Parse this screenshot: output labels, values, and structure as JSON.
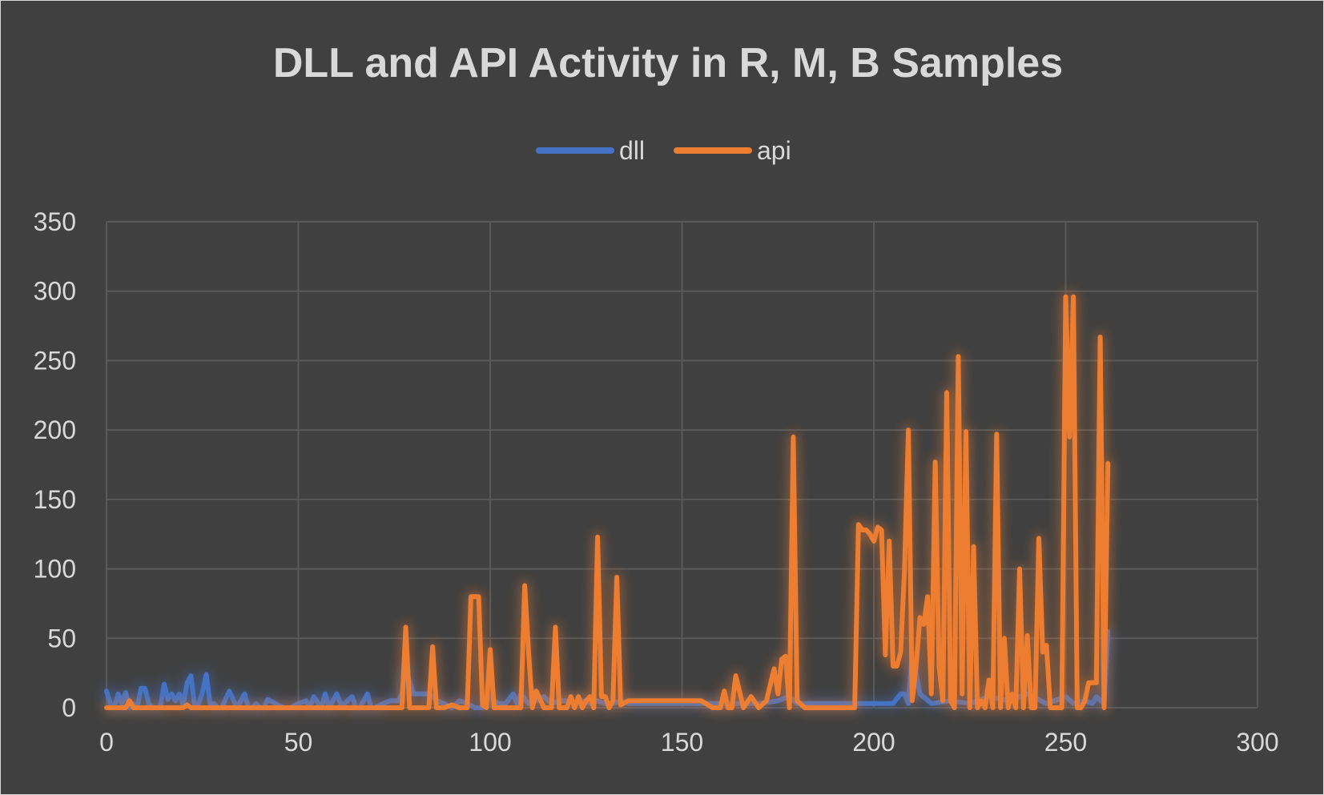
{
  "chart_data": {
    "type": "line",
    "title": "DLL and API Activity in R, M, B Samples",
    "xlabel": "",
    "ylabel": "",
    "xlim": [
      0,
      300
    ],
    "ylim": [
      0,
      350
    ],
    "x_ticks": [
      "0",
      "50",
      "100",
      "150",
      "200",
      "250",
      "300"
    ],
    "y_ticks": [
      "0",
      "50",
      "100",
      "150",
      "200",
      "250",
      "300",
      "350"
    ],
    "grid": true,
    "legend_position": "top-center",
    "background_color": "#404040",
    "text_color": "#d9d9d9",
    "grid_color": "#595959",
    "series": [
      {
        "name": "dll",
        "color": "#4472c4",
        "x": [
          0,
          1,
          2,
          3,
          4,
          5,
          6,
          7,
          8,
          9,
          10,
          11,
          12,
          13,
          14,
          15,
          16,
          17,
          18,
          19,
          20,
          21,
          22,
          23,
          24,
          25,
          26,
          27,
          28,
          29,
          30,
          32,
          34,
          36,
          37,
          38,
          39,
          40,
          41,
          42,
          44,
          46,
          48,
          50,
          52,
          53,
          54,
          56,
          57,
          58,
          60,
          61,
          62,
          64,
          65,
          66,
          68,
          69,
          70,
          72,
          74,
          76,
          77,
          78,
          80,
          82,
          84,
          86,
          88,
          90,
          92,
          94,
          96,
          98,
          100,
          102,
          104,
          106,
          107,
          108,
          110,
          112,
          114,
          116,
          118,
          120,
          122,
          124,
          126,
          128,
          130,
          132,
          134,
          136,
          140,
          150,
          160,
          170,
          175,
          178,
          180,
          185,
          190,
          195,
          200,
          205,
          207,
          208,
          209,
          210,
          212,
          215,
          220,
          225,
          230,
          235,
          240,
          245,
          250,
          252,
          255,
          257,
          258,
          260,
          261
        ],
        "y": [
          12,
          3,
          0,
          10,
          3,
          11,
          0,
          3,
          0,
          14,
          14,
          3,
          0,
          0,
          0,
          17,
          6,
          10,
          5,
          10,
          2,
          18,
          23,
          0,
          3,
          11,
          24,
          3,
          3,
          0,
          0,
          12,
          0,
          10,
          0,
          0,
          3,
          0,
          0,
          6,
          3,
          0,
          0,
          3,
          5,
          0,
          8,
          0,
          10,
          0,
          10,
          3,
          3,
          8,
          0,
          0,
          10,
          0,
          0,
          3,
          5,
          5,
          10,
          28,
          10,
          10,
          10,
          5,
          3,
          0,
          5,
          3,
          0,
          0,
          8,
          3,
          3,
          10,
          3,
          10,
          3,
          5,
          8,
          3,
          5,
          5,
          3,
          5,
          3,
          5,
          3,
          3,
          5,
          3,
          3,
          3,
          3,
          3,
          5,
          8,
          3,
          3,
          3,
          3,
          3,
          3,
          10,
          10,
          3,
          40,
          10,
          3,
          5,
          3,
          8,
          5,
          10,
          3,
          8,
          3,
          5,
          3,
          8,
          3,
          55
        ]
      },
      {
        "name": "api",
        "color": "#ed7d31",
        "x": [
          0,
          5,
          6,
          7,
          8,
          20,
          21,
          22,
          77,
          78,
          79,
          84,
          85,
          86,
          88,
          90,
          92,
          94,
          95,
          97,
          98,
          99,
          100,
          101,
          102,
          104,
          106,
          108,
          109,
          110,
          111,
          112,
          114,
          116,
          117,
          118,
          120,
          121,
          122,
          123,
          124,
          125,
          126,
          127,
          128,
          129,
          130,
          131,
          132,
          133,
          134,
          136,
          150,
          155,
          158,
          160,
          161,
          162,
          163,
          164,
          166,
          168,
          170,
          172,
          174,
          175,
          176,
          177,
          178,
          179,
          180,
          182,
          190,
          195,
          196,
          197,
          198,
          199,
          200,
          201,
          202,
          203,
          204,
          205,
          206,
          207,
          208,
          209,
          210,
          211,
          212,
          213,
          214,
          215,
          216,
          217,
          218,
          219,
          220,
          221,
          222,
          223,
          224,
          225,
          226,
          227,
          228,
          229,
          230,
          231,
          232,
          233,
          234,
          235,
          236,
          237,
          238,
          239,
          240,
          241,
          242,
          243,
          244,
          245,
          246,
          247,
          248,
          249,
          250,
          251,
          252,
          253,
          254,
          255,
          256,
          257,
          258,
          259,
          260,
          261
        ],
        "y": [
          0,
          0,
          5,
          0,
          0,
          0,
          2,
          0,
          0,
          58,
          0,
          0,
          44,
          0,
          0,
          2,
          0,
          0,
          80,
          80,
          2,
          0,
          42,
          0,
          0,
          0,
          0,
          0,
          88,
          40,
          0,
          12,
          0,
          0,
          58,
          0,
          0,
          8,
          0,
          8,
          0,
          5,
          8,
          0,
          123,
          8,
          8,
          0,
          5,
          94,
          2,
          5,
          5,
          5,
          0,
          0,
          12,
          0,
          0,
          23,
          0,
          8,
          0,
          5,
          28,
          10,
          35,
          37,
          0,
          195,
          5,
          0,
          0,
          0,
          132,
          128,
          128,
          125,
          120,
          130,
          128,
          38,
          120,
          30,
          30,
          40,
          100,
          200,
          5,
          30,
          65,
          60,
          80,
          10,
          177,
          30,
          5,
          227,
          5,
          0,
          253,
          10,
          199,
          0,
          116,
          0,
          5,
          0,
          20,
          0,
          197,
          0,
          50,
          0,
          10,
          0,
          100,
          0,
          52,
          0,
          0,
          122,
          40,
          45,
          0,
          0,
          0,
          0,
          296,
          195,
          296,
          0,
          0,
          5,
          18,
          18,
          18,
          267,
          0,
          176
        ]
      }
    ]
  }
}
